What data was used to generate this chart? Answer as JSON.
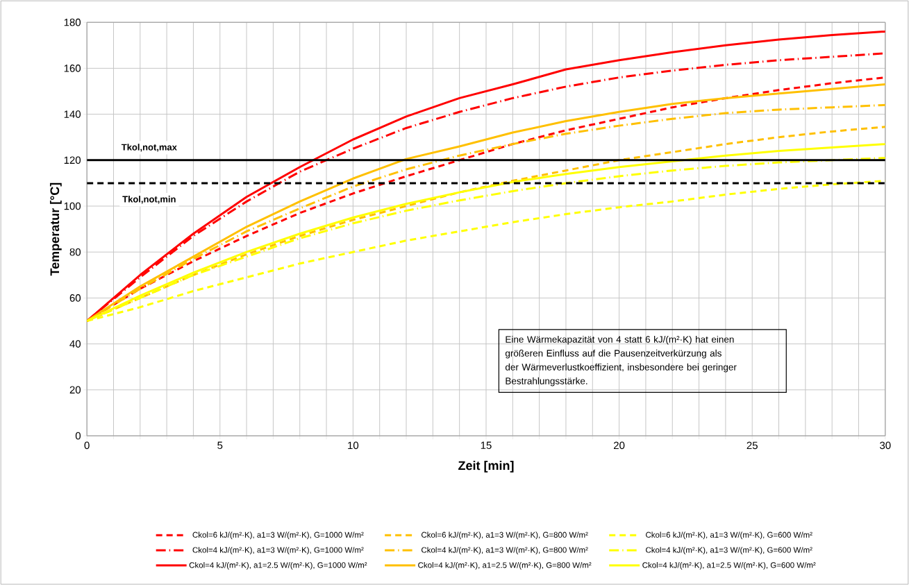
{
  "chart_data": {
    "type": "line",
    "xlabel": "Zeit [min]",
    "ylabel": "Temperatur [°C]",
    "x": [
      0,
      2,
      4,
      6,
      8,
      10,
      12,
      14,
      16,
      18,
      20,
      22,
      24,
      26,
      28,
      30
    ],
    "series": [
      {
        "name": "Ckol=6 kJ/(m²·K),  a1=3 W/(m²·K), G=1000 W/m²",
        "color": "#ff0000",
        "line_style": "dashed",
        "values": [
          50,
          64,
          76,
          87,
          97,
          105.5,
          113,
          120,
          127,
          133,
          138,
          143,
          147,
          150.5,
          153.5,
          156
        ]
      },
      {
        "name": "Ckol=6 kJ/(m²·K),  a1=3 W/(m²·K), G=800 W/m²",
        "color": "#ffc000",
        "line_style": "dashed",
        "values": [
          50,
          60,
          70,
          79,
          87,
          94,
          100,
          106,
          111,
          115.5,
          120,
          123.5,
          127,
          130,
          132.5,
          134.5
        ]
      },
      {
        "name": "Ckol=6 kJ/(m²·K),  a1=3 W/(m²·K), G=600 W/m²",
        "color": "#ffff00",
        "line_style": "dashed",
        "values": [
          50,
          56,
          63,
          69,
          75,
          80,
          85,
          89,
          93,
          96.5,
          99.5,
          102,
          105,
          107.5,
          109.5,
          111
        ]
      },
      {
        "name": "Ckol=4 kJ/(m²·K),  a1=3 W/(m²·K), G=1000 W/m²",
        "color": "#ff0000",
        "line_style": "dashdot",
        "values": [
          50,
          69,
          87,
          102,
          115,
          125,
          134,
          141,
          147,
          152,
          156,
          159,
          161.5,
          163.5,
          165,
          166.5
        ]
      },
      {
        "name": "Ckol=4 kJ/(m²·K),  a1=3 W/(m²·K), G=800 W/m²",
        "color": "#ffc000",
        "line_style": "dashdot",
        "values": [
          50,
          64,
          77,
          89,
          99,
          108.5,
          116,
          122,
          127,
          131.5,
          135,
          138,
          140.5,
          142,
          143,
          144
        ]
      },
      {
        "name": "Ckol=4 kJ/(m²·K),  a1=3 W/(m²·K), G=600 W/m²",
        "color": "#ffff00",
        "line_style": "dashdot",
        "values": [
          50,
          60,
          70,
          78,
          86,
          92.5,
          98,
          102.5,
          106.5,
          110,
          113,
          115.5,
          117.5,
          119,
          120,
          121
        ]
      },
      {
        "name": "Ckol=4 kJ/(m²·K),  a1=2.5 W/(m²·K),  G=1000 W/m²",
        "color": "#ff0000",
        "line_style": "solid",
        "values": [
          50,
          70,
          88,
          104,
          117,
          129,
          139,
          147,
          153,
          159.5,
          163.5,
          167,
          170,
          172.5,
          174.5,
          176
        ]
      },
      {
        "name": "Ckol=4 kJ/(m²·K),  a1=2.5 W/(m²·K),  G=800 W/m²",
        "color": "#ffc000",
        "line_style": "solid",
        "values": [
          50,
          65,
          78,
          91,
          102,
          112,
          120.5,
          126,
          132,
          137,
          141,
          144.5,
          147,
          149,
          151,
          153
        ]
      },
      {
        "name": "Ckol=4 kJ/(m²·K),  a1=2.5 W/(m²·K),  G=600 W/m²",
        "color": "#ffff00",
        "line_style": "solid",
        "values": [
          50,
          61,
          71,
          80,
          88,
          95,
          101,
          106,
          110.5,
          114,
          117,
          119.5,
          122,
          124,
          125.5,
          127
        ]
      }
    ],
    "xlim": [
      0,
      30
    ],
    "ylim": [
      0,
      180
    ],
    "xticks": [
      0,
      {
        "value": 1,
        "label": null
      },
      {
        "value": 2,
        "label": null
      },
      {
        "value": 3,
        "label": null
      },
      {
        "value": 4,
        "label": null
      },
      5,
      {
        "value": 6,
        "label": null
      },
      {
        "value": 7,
        "label": null
      },
      {
        "value": 8,
        "label": null
      },
      {
        "value": 9,
        "label": null
      },
      10,
      {
        "value": 11,
        "label": null
      },
      {
        "value": 12,
        "label": null
      },
      {
        "value": 13,
        "label": null
      },
      {
        "value": 14,
        "label": null
      },
      15,
      {
        "value": 16,
        "label": null
      },
      {
        "value": 17,
        "label": null
      },
      {
        "value": 18,
        "label": null
      },
      {
        "value": 19,
        "label": null
      },
      20,
      {
        "value": 21,
        "label": null
      },
      {
        "value": 22,
        "label": null
      },
      {
        "value": 23,
        "label": null
      },
      {
        "value": 24,
        "label": null
      },
      25,
      {
        "value": 26,
        "label": null
      },
      {
        "value": 27,
        "label": null
      },
      {
        "value": 28,
        "label": null
      },
      {
        "value": 29,
        "label": null
      },
      30
    ],
    "yticks": [
      0,
      20,
      40,
      60,
      80,
      100,
      120,
      140,
      160,
      180
    ],
    "grid": true,
    "legend": "bottom",
    "ref_lines": [
      {
        "axis": "y",
        "value": 120,
        "label": "Tkol,not,max",
        "color": "#000000",
        "line_style": "solid"
      },
      {
        "axis": "y",
        "value": 110,
        "label": "Tkol,not,min",
        "color": "#000000",
        "line_style": "dashed"
      }
    ],
    "annotations": [
      "Eine Wärmekapazität von 4 statt 6 kJ/(m²·K) hat einen größeren Einfluss auf die Pausenzeitverkürzung als der Wärmeverlustkoeffizient, insbesondere bei geringer Bestrahlungsstärke."
    ]
  }
}
